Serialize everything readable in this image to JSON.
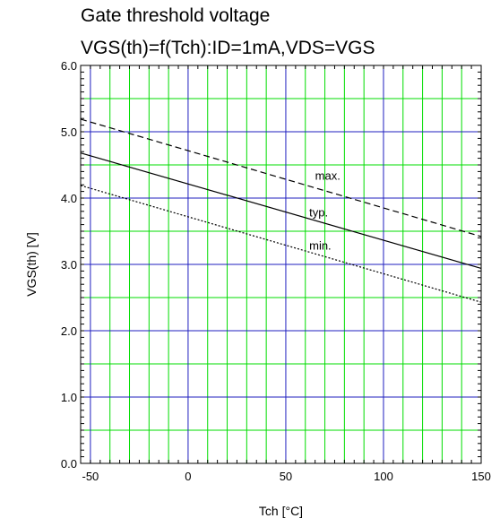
{
  "chart_data": {
    "type": "line",
    "title": "Gate threshold voltage",
    "subtitle": "VGS(th)=f(Tch):ID=1mA,VDS=VGS",
    "xlabel": "Tch [°C]",
    "ylabel": "VGS(th) [V]",
    "xlim": [
      -55,
      150
    ],
    "ylim": [
      0.0,
      6.0
    ],
    "xticks": [
      -50,
      0,
      50,
      100,
      150
    ],
    "yticks": [
      0.0,
      1.0,
      2.0,
      3.0,
      4.0,
      5.0,
      6.0
    ],
    "ytick_labels": [
      "0.0",
      "1.0",
      "2.0",
      "3.0",
      "4.0",
      "5.0",
      "6.0"
    ],
    "grid": true,
    "series": [
      {
        "name": "max.",
        "style": "dashed",
        "x": [
          -55,
          150
        ],
        "y": [
          5.19,
          3.42
        ],
        "label_at": [
          65,
          4.28
        ]
      },
      {
        "name": "typ.",
        "style": "solid",
        "x": [
          -55,
          150
        ],
        "y": [
          4.68,
          2.94
        ],
        "label_at": [
          62,
          3.72
        ]
      },
      {
        "name": "min.",
        "style": "dotted",
        "x": [
          -55,
          150
        ],
        "y": [
          4.19,
          2.43
        ],
        "label_at": [
          62,
          3.22
        ]
      }
    ],
    "colors": {
      "major_grid": "#1f1fbf",
      "minor_grid": "#00dd00",
      "line": "#000000"
    }
  }
}
